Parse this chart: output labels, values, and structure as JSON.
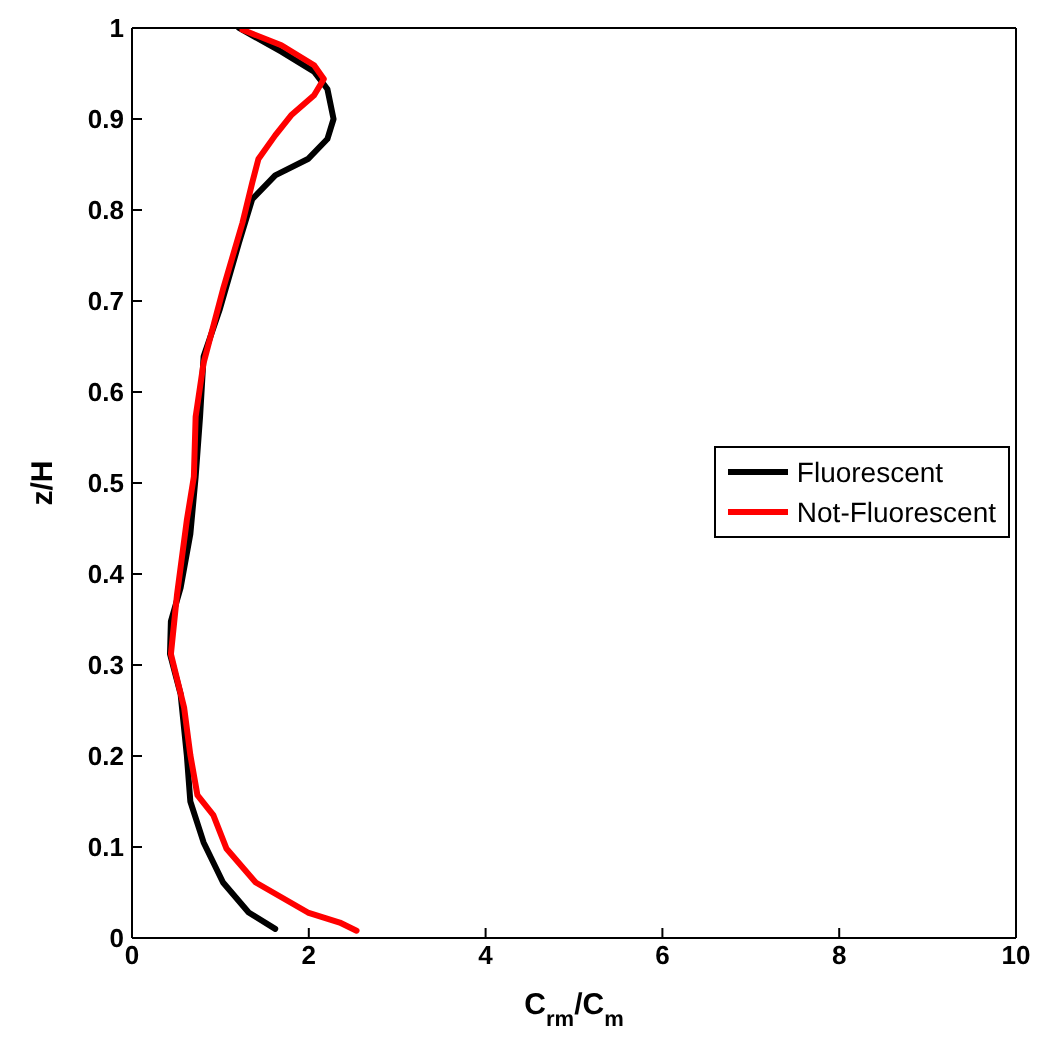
{
  "chart_data": {
    "type": "line",
    "xlabel": "C$_{rm}$/C$_{m}$",
    "ylabel": "z/H",
    "xlim": [
      0,
      10
    ],
    "xticks": [
      0,
      2,
      4,
      6,
      8,
      10
    ],
    "ylim": [
      0,
      1
    ],
    "yticks": [
      0,
      0.1,
      0.2,
      0.3,
      0.4,
      0.5,
      0.6,
      0.7,
      0.8,
      0.9,
      1
    ],
    "legend": "right",
    "marker": "none",
    "line_style": "solid",
    "series": [
      {
        "name": "Fluorescent",
        "color": "#000000",
        "x": [
          1.62,
          1.32,
          1.03,
          0.81,
          0.66,
          0.62,
          0.55,
          0.43,
          0.44,
          0.55,
          0.66,
          0.72,
          0.77,
          0.81,
          0.99,
          1.21,
          1.36,
          1.62,
          1.99,
          2.21,
          2.28,
          2.21,
          2.06,
          1.69,
          1.21
        ],
        "values": [
          0.01,
          0.028,
          0.061,
          0.105,
          0.15,
          0.201,
          0.268,
          0.312,
          0.348,
          0.385,
          0.444,
          0.507,
          0.573,
          0.639,
          0.69,
          0.764,
          0.812,
          0.838,
          0.856,
          0.878,
          0.9,
          0.933,
          0.952,
          0.974,
          1.0
        ]
      },
      {
        "name": "Not-Fluorescent",
        "color": "#ff0000",
        "x": [
          2.54,
          2.35,
          1.99,
          1.4,
          1.07,
          0.92,
          0.74,
          0.66,
          0.59,
          0.44,
          0.51,
          0.62,
          0.7,
          0.72,
          0.81,
          1.03,
          1.25,
          1.36,
          1.43,
          1.62,
          1.8,
          2.06,
          2.17,
          2.06,
          1.69,
          1.25
        ],
        "values": [
          0.008,
          0.017,
          0.028,
          0.061,
          0.098,
          0.135,
          0.157,
          0.201,
          0.253,
          0.312,
          0.378,
          0.459,
          0.507,
          0.573,
          0.632,
          0.713,
          0.786,
          0.83,
          0.856,
          0.882,
          0.904,
          0.926,
          0.944,
          0.959,
          0.981,
          0.998
        ]
      }
    ]
  }
}
